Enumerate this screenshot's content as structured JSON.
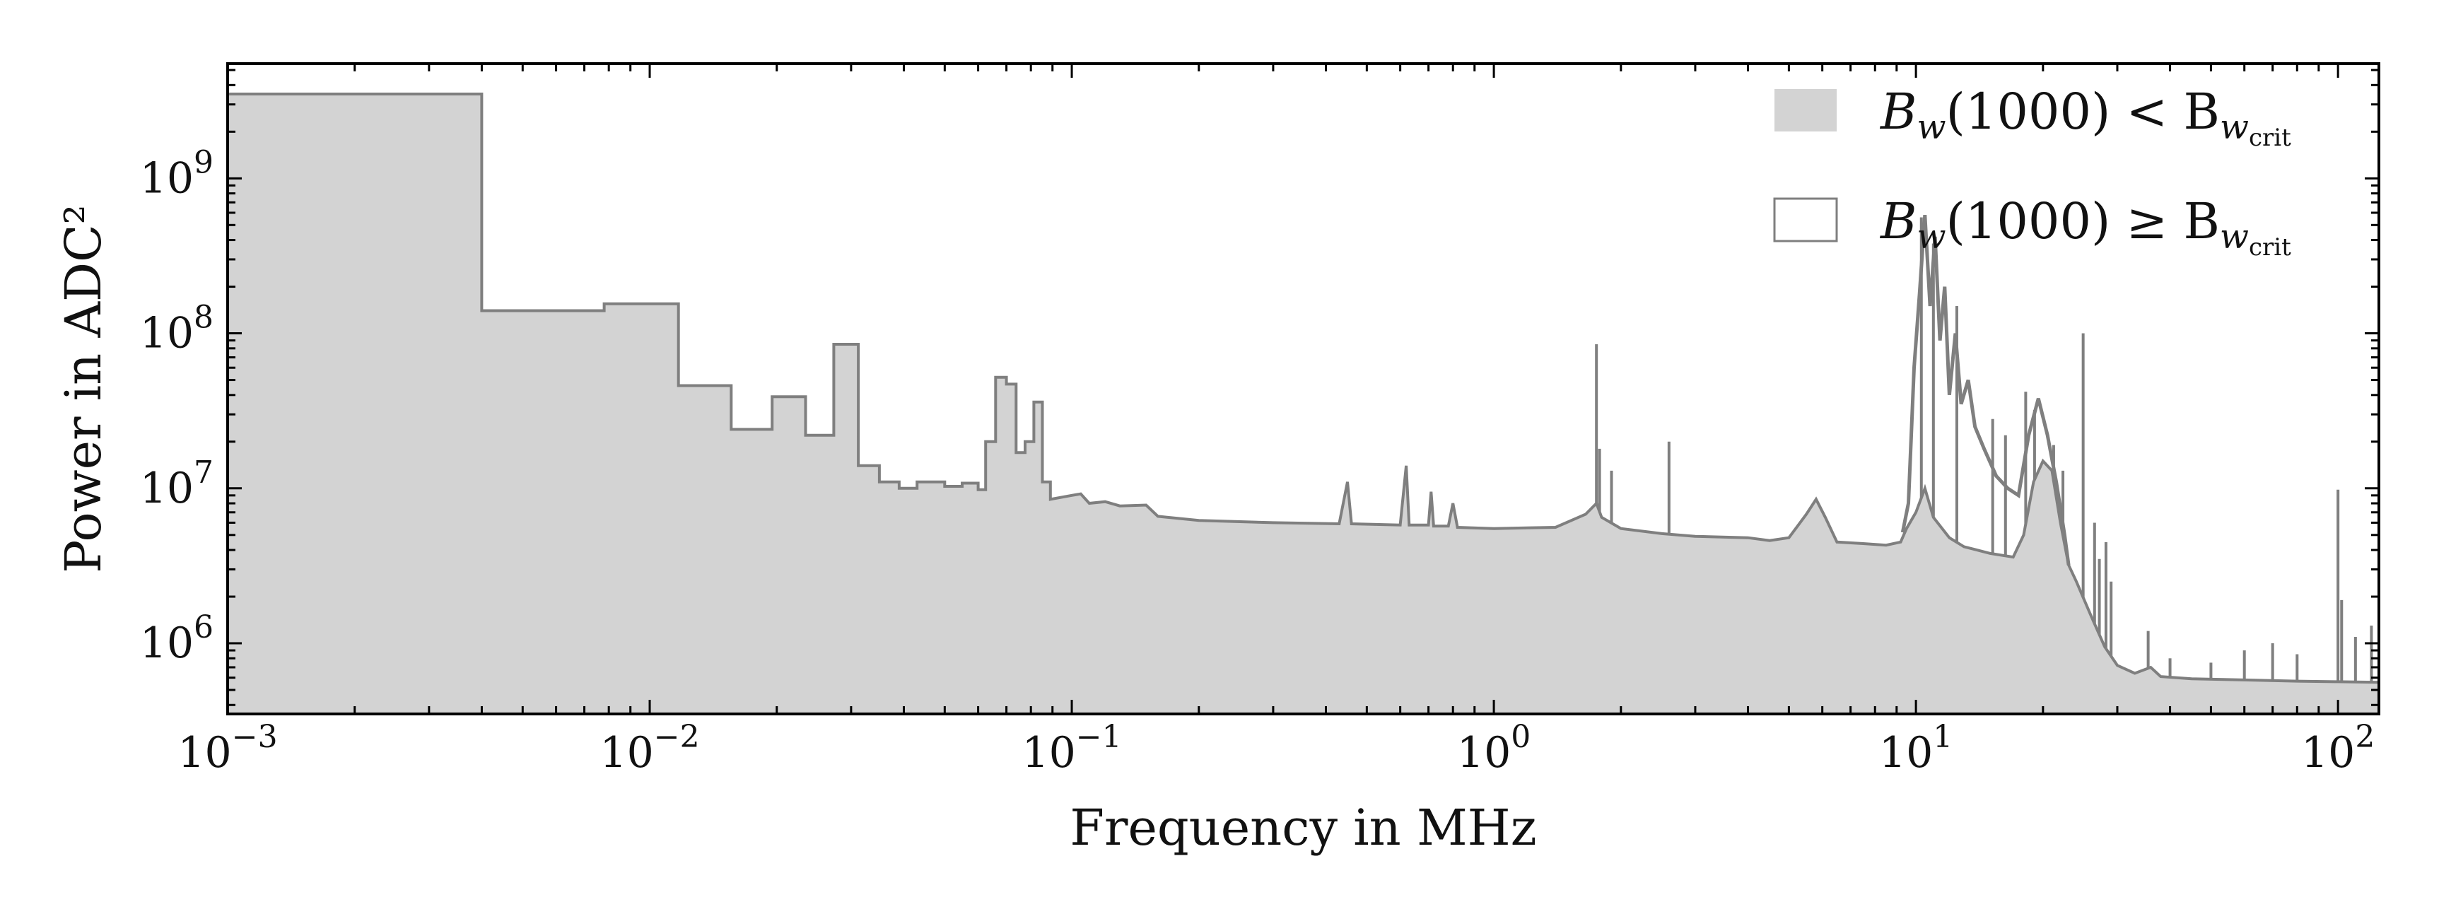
{
  "chart_data": {
    "type": "area",
    "title": "",
    "xlabel": "Frequency in MHz",
    "ylabel": "Power in ADC²",
    "xscale": "log",
    "yscale": "log",
    "xlim": [
      0.001,
      125
    ],
    "ylim": [
      350000,
      5500000000
    ],
    "x_ticks": [
      {
        "value": 0.001,
        "base": "10",
        "exp": "−3"
      },
      {
        "value": 0.01,
        "base": "10",
        "exp": "−2"
      },
      {
        "value": 0.1,
        "base": "10",
        "exp": "−1"
      },
      {
        "value": 1,
        "base": "10",
        "exp": "0"
      },
      {
        "value": 10,
        "base": "10",
        "exp": "1"
      },
      {
        "value": 100,
        "base": "10",
        "exp": "2"
      }
    ],
    "y_ticks": [
      {
        "value": 1000000,
        "base": "10",
        "exp": "6"
      },
      {
        "value": 10000000,
        "base": "10",
        "exp": "7"
      },
      {
        "value": 100000000,
        "base": "10",
        "exp": "8"
      },
      {
        "value": 1000000000,
        "base": "10",
        "exp": "9"
      }
    ],
    "legend": {
      "position": "top-right",
      "entries": [
        {
          "label": "B_w(1000) < B_w_crit",
          "main": "B",
          "sub": "w",
          "mid": "(1000) < B",
          "sub2": "w",
          "sub3": "crit",
          "style": "filled",
          "color": "#d3d3d3"
        },
        {
          "label": "B_w(1000) ≥ B_w_crit",
          "main": "B",
          "sub": "w",
          "mid": "(1000) ≥ B",
          "sub2": "w",
          "sub3": "crit",
          "style": "outline",
          "color": "#7f7f7f"
        }
      ]
    },
    "series": [
      {
        "name": "B_w(1000) < B_w_crit",
        "style": "step-filled",
        "color": "#d3d3d3",
        "edge_color": "#7f7f7f",
        "points": [
          [
            0.001,
            3500000000
          ],
          [
            0.004,
            3500000000
          ],
          [
            0.004,
            140000000
          ],
          [
            0.0078,
            140000000
          ],
          [
            0.0078,
            155000000
          ],
          [
            0.0117,
            155000000
          ],
          [
            0.0117,
            46000000
          ],
          [
            0.0156,
            46000000
          ],
          [
            0.0156,
            24000000
          ],
          [
            0.0195,
            24000000
          ],
          [
            0.0195,
            39000000
          ],
          [
            0.0234,
            39000000
          ],
          [
            0.0234,
            22000000
          ],
          [
            0.0273,
            22000000
          ],
          [
            0.0273,
            85000000
          ],
          [
            0.0312,
            85000000
          ],
          [
            0.0312,
            14000000
          ],
          [
            0.035,
            14000000
          ],
          [
            0.035,
            11000000
          ],
          [
            0.039,
            11000000
          ],
          [
            0.039,
            10000000
          ],
          [
            0.043,
            10000000
          ],
          [
            0.043,
            11000000
          ],
          [
            0.05,
            11000000
          ],
          [
            0.05,
            10300000
          ],
          [
            0.055,
            10300000
          ],
          [
            0.055,
            10800000
          ],
          [
            0.06,
            10800000
          ],
          [
            0.06,
            9800000
          ],
          [
            0.0625,
            9800000
          ],
          [
            0.0625,
            20000000
          ],
          [
            0.066,
            20000000
          ],
          [
            0.066,
            52000000
          ],
          [
            0.07,
            52000000
          ],
          [
            0.07,
            47000000
          ],
          [
            0.0738,
            47000000
          ],
          [
            0.0738,
            17000000
          ],
          [
            0.0775,
            17000000
          ],
          [
            0.0775,
            20000000
          ],
          [
            0.0813,
            20000000
          ],
          [
            0.0813,
            36000000
          ],
          [
            0.0852,
            36000000
          ],
          [
            0.0852,
            11000000
          ],
          [
            0.089,
            11000000
          ],
          [
            0.089,
            8500000
          ],
          [
            0.1,
            9000000
          ],
          [
            0.105,
            9200000
          ],
          [
            0.11,
            8000000
          ],
          [
            0.12,
            8200000
          ],
          [
            0.13,
            7700000
          ],
          [
            0.15,
            7800000
          ],
          [
            0.16,
            6600000
          ],
          [
            0.2,
            6200000
          ],
          [
            0.3,
            6000000
          ],
          [
            0.43,
            5900000
          ],
          [
            0.45,
            11000000
          ],
          [
            0.46,
            5900000
          ],
          [
            0.6,
            5800000
          ],
          [
            0.62,
            14000000
          ],
          [
            0.63,
            5800000
          ],
          [
            0.7,
            5800000
          ],
          [
            0.71,
            9500000
          ],
          [
            0.72,
            5700000
          ],
          [
            0.78,
            5700000
          ],
          [
            0.8,
            8000000
          ],
          [
            0.82,
            5600000
          ],
          [
            1.0,
            5500000
          ],
          [
            1.4,
            5600000
          ],
          [
            1.65,
            6800000
          ],
          [
            1.75,
            8000000
          ],
          [
            1.8,
            6500000
          ],
          [
            2.0,
            5500000
          ],
          [
            2.5,
            5100000
          ],
          [
            3.0,
            4900000
          ],
          [
            4.0,
            4800000
          ],
          [
            4.5,
            4600000
          ],
          [
            5.0,
            4800000
          ],
          [
            5.5,
            6800000
          ],
          [
            5.8,
            8500000
          ],
          [
            6.1,
            6500000
          ],
          [
            6.5,
            4500000
          ],
          [
            7.5,
            4400000
          ],
          [
            8.5,
            4300000
          ],
          [
            9.2,
            4500000
          ],
          [
            9.5,
            5500000
          ],
          [
            10.0,
            7000000
          ],
          [
            10.5,
            10000000
          ],
          [
            11.0,
            6500000
          ],
          [
            12.0,
            4800000
          ],
          [
            13.0,
            4200000
          ],
          [
            15.0,
            3800000
          ],
          [
            17.0,
            3600000
          ],
          [
            18.0,
            5000000
          ],
          [
            19.0,
            11000000
          ],
          [
            20.0,
            15000000
          ],
          [
            21.0,
            13000000
          ],
          [
            22.0,
            6000000
          ],
          [
            23.0,
            3200000
          ],
          [
            24.0,
            2500000
          ],
          [
            26.0,
            1500000
          ],
          [
            28.0,
            950000
          ],
          [
            30.0,
            720000
          ],
          [
            33.0,
            640000
          ],
          [
            36.0,
            700000
          ],
          [
            38.0,
            610000
          ],
          [
            45.0,
            590000
          ],
          [
            60.0,
            580000
          ],
          [
            80.0,
            570000
          ],
          [
            100.0,
            565000
          ],
          [
            125.0,
            560000
          ]
        ]
      },
      {
        "name": "B_w(1000) ≥ B_w_crit",
        "style": "step-outline",
        "color": "#7f7f7f",
        "envelope": [
          [
            9.3,
            5200000
          ],
          [
            9.6,
            8000000
          ],
          [
            9.9,
            60000000
          ],
          [
            10.2,
            180000000
          ],
          [
            10.5,
            580000000
          ],
          [
            10.8,
            150000000
          ],
          [
            11.1,
            420000000
          ],
          [
            11.4,
            90000000
          ],
          [
            11.7,
            200000000
          ],
          [
            12.0,
            40000000
          ],
          [
            12.4,
            100000000
          ],
          [
            12.8,
            35000000
          ],
          [
            13.3,
            50000000
          ],
          [
            13.8,
            25000000
          ],
          [
            14.5,
            18000000
          ],
          [
            15.5,
            12000000
          ],
          [
            16.5,
            10000000
          ],
          [
            17.5,
            9000000
          ],
          [
            18.5,
            22000000
          ],
          [
            19.5,
            38000000
          ],
          [
            20.5,
            22000000
          ],
          [
            21.5,
            11000000
          ],
          [
            22.5,
            5000000
          ],
          [
            23.0,
            3200000
          ]
        ],
        "spikes": [
          [
            1.75,
            85000000
          ],
          [
            1.78,
            18000000
          ],
          [
            2.6,
            20000000
          ],
          [
            1.9,
            13000000
          ],
          [
            10.3,
            560000000
          ],
          [
            11.0,
            380000000
          ],
          [
            12.5,
            150000000
          ],
          [
            15.2,
            28000000
          ],
          [
            16.3,
            22000000
          ],
          [
            18.2,
            42000000
          ],
          [
            19.1,
            32000000
          ],
          [
            21.2,
            19000000
          ],
          [
            22.3,
            13000000
          ],
          [
            24.9,
            100000000
          ],
          [
            26.5,
            6000000
          ],
          [
            27.2,
            3500000
          ],
          [
            28.2,
            4500000
          ],
          [
            29.0,
            2500000
          ],
          [
            35.5,
            1200000
          ],
          [
            40.0,
            800000
          ],
          [
            50.0,
            750000
          ],
          [
            60.0,
            900000
          ],
          [
            70.0,
            1000000
          ],
          [
            80.0,
            850000
          ],
          [
            100.0,
            9800000
          ],
          [
            102.0,
            1900000
          ],
          [
            110.0,
            1100000
          ],
          [
            120.0,
            1300000
          ]
        ]
      }
    ]
  }
}
